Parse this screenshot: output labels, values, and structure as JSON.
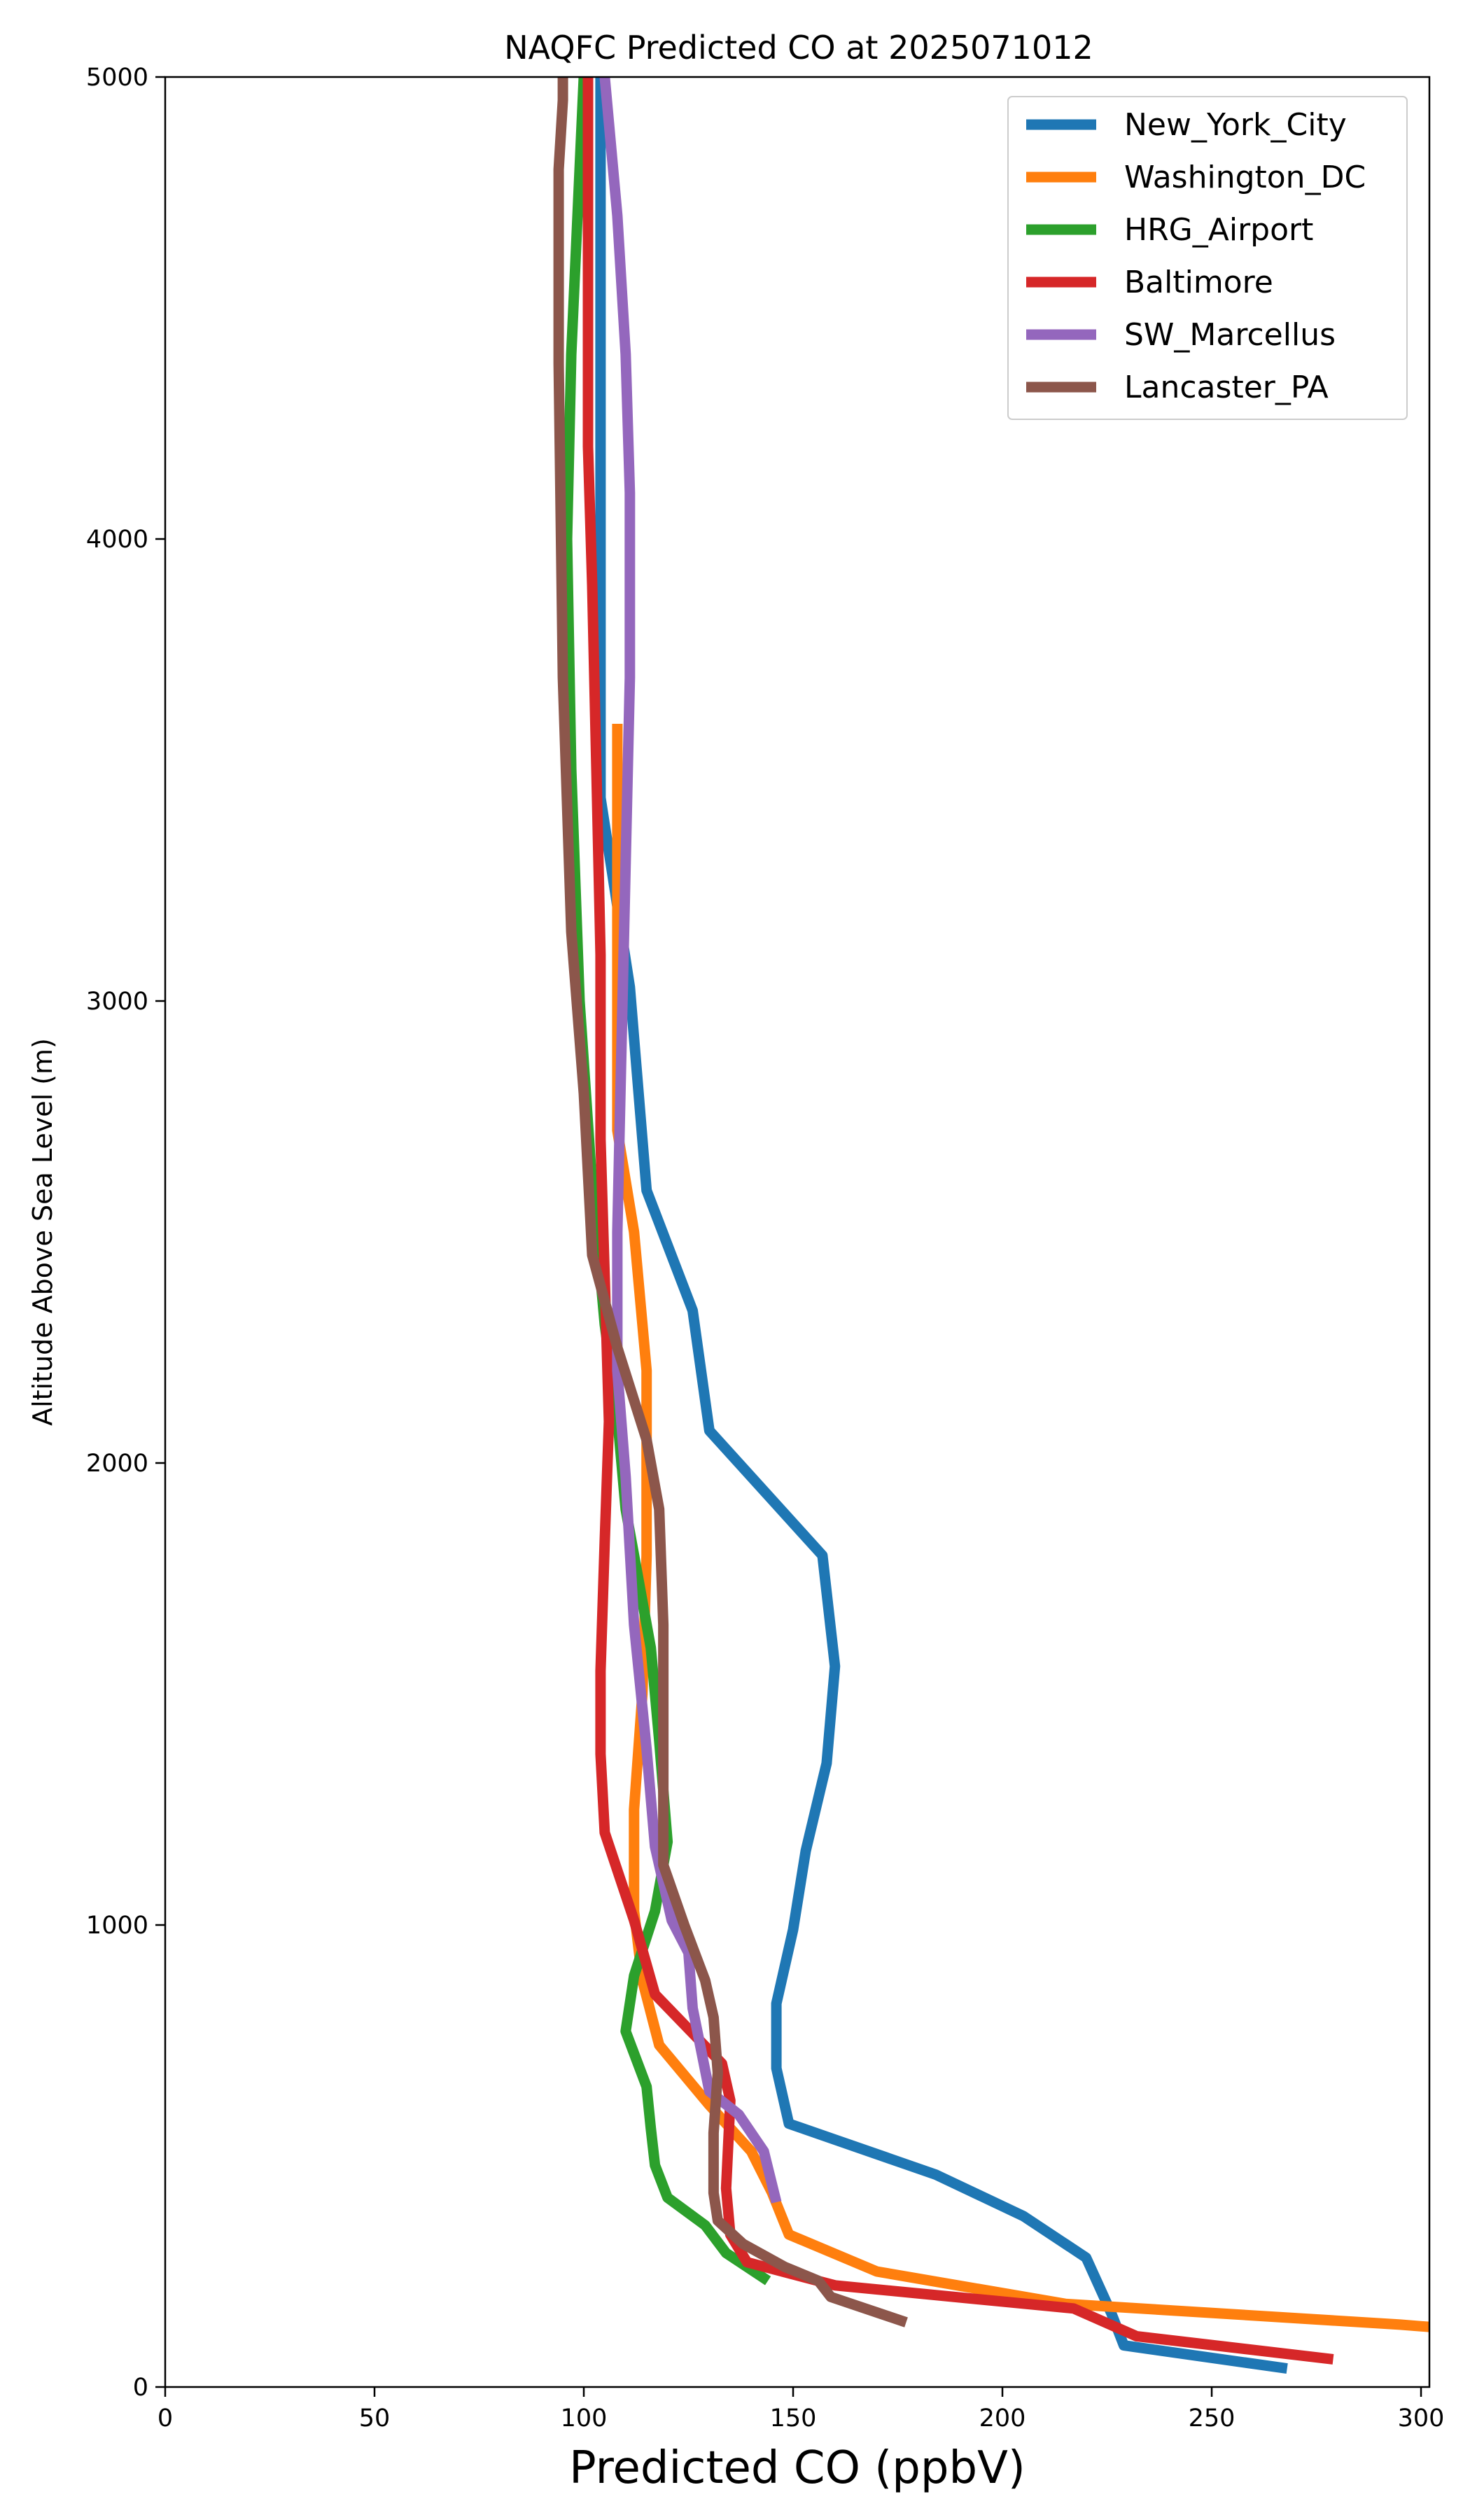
{
  "chart_data": {
    "type": "line",
    "title": "NAQFC Predicted CO at 2025071012",
    "xlabel": "Predicted CO (ppbV)",
    "ylabel": "Altitude Above Sea Level (m)",
    "xlim": [
      0,
      302
    ],
    "ylim": [
      0,
      5000
    ],
    "xticks": [
      "0",
      "50",
      "100",
      "150",
      "200",
      "250",
      "300"
    ],
    "yticks": [
      "0",
      "1000",
      "2000",
      "3000",
      "4000",
      "5000"
    ],
    "grid": false,
    "legend_position": "top-right",
    "series": [
      {
        "name": "New_York_City",
        "color": "#1f77b4",
        "x": [
          268,
          229,
          226,
          220,
          205,
          184,
          149,
          146,
          146,
          150,
          153,
          158,
          160,
          157,
          130,
          126,
          115,
          111,
          104,
          104,
          104,
          104,
          104,
          104,
          104
        ],
        "y": [
          40,
          90,
          160,
          280,
          370,
          460,
          570,
          690,
          830,
          990,
          1160,
          1350,
          1560,
          1800,
          2070,
          2330,
          2590,
          3030,
          3440,
          3800,
          4150,
          4450,
          4700,
          4870,
          5000
        ]
      },
      {
        "name": "Washington_DC",
        "color": "#ff7f0e",
        "x": [
          302,
          295,
          215,
          170,
          149,
          145,
          140,
          130,
          118,
          114,
          112,
          112,
          114,
          115,
          115,
          112,
          108,
          108,
          108,
          108,
          108
        ],
        "y": [
          130,
          135,
          180,
          250,
          330,
          420,
          510,
          610,
          740,
          880,
          1030,
          1250,
          1500,
          1800,
          2200,
          2500,
          2720,
          3080,
          3300,
          3500,
          3600
        ]
      },
      {
        "name": "HRG_Airport",
        "color": "#2ca02c",
        "x": [
          144,
          134,
          129,
          120,
          117,
          116,
          115,
          110,
          112,
          117,
          120,
          118,
          116,
          113,
          110,
          108,
          105,
          102,
          99,
          97,
          96,
          97,
          99,
          100
        ],
        "y": [
          230,
          290,
          350,
          410,
          480,
          560,
          650,
          770,
          890,
          1030,
          1180,
          1400,
          1600,
          1750,
          1900,
          2100,
          2300,
          2600,
          3000,
          3500,
          4000,
          4400,
          4800,
          5000
        ]
      },
      {
        "name": "Baltimore",
        "color": "#d62728",
        "x": [
          279,
          232,
          217,
          160,
          139,
          135,
          134,
          135,
          133,
          117,
          112,
          105,
          104,
          104,
          105,
          106,
          105,
          104,
          104,
          103,
          102,
          101,
          101,
          101
        ],
        "y": [
          60,
          110,
          170,
          220,
          270,
          330,
          430,
          620,
          700,
          850,
          1010,
          1200,
          1370,
          1550,
          1830,
          2090,
          2400,
          2700,
          3100,
          3500,
          3900,
          4200,
          4700,
          5000
        ]
      },
      {
        "name": "SW_Marcellus",
        "color": "#9467bd",
        "x": [
          146,
          143,
          137,
          130,
          128,
          126,
          125,
          121,
          117,
          115,
          112,
          110,
          108,
          108,
          109,
          110,
          111,
          111,
          110,
          108,
          106,
          105
        ],
        "y": [
          400,
          510,
          590,
          640,
          730,
          820,
          940,
          1010,
          1170,
          1380,
          1650,
          1970,
          2200,
          2500,
          2900,
          3300,
          3700,
          4100,
          4400,
          4700,
          4900,
          5000
        ]
      },
      {
        "name": "Lancaster_PA",
        "color": "#8c564b",
        "x": [
          177,
          159,
          156,
          148,
          138,
          132,
          131,
          131,
          132,
          131,
          129,
          124,
          119,
          119,
          119,
          118,
          115,
          108,
          102,
          100,
          97,
          95,
          94,
          94,
          95,
          95
        ],
        "y": [
          140,
          195,
          230,
          260,
          310,
          360,
          420,
          550,
          680,
          800,
          880,
          1000,
          1130,
          1400,
          1650,
          1900,
          2050,
          2250,
          2450,
          2800,
          3150,
          3700,
          4380,
          4800,
          4950,
          5000
        ]
      }
    ]
  }
}
